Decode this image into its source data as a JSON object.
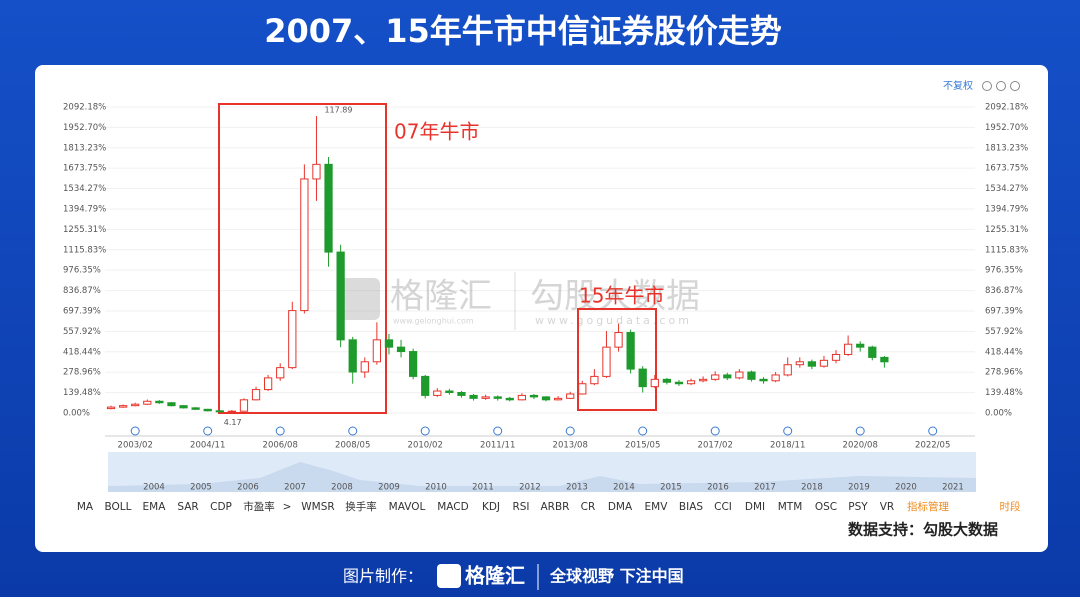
{
  "chart_data": {
    "type": "candlestick",
    "title": "2007、15年牛市中信证券股价走势",
    "categories": [
      null,
      null,
      "2003/02",
      null,
      null,
      null,
      null,
      null,
      "2004/11",
      null,
      null,
      null,
      null,
      null,
      "2006/08",
      null,
      null,
      null,
      null,
      null,
      "2008/05",
      null,
      null,
      null,
      null,
      null,
      "2010/02",
      null,
      null,
      null,
      null,
      null,
      "2011/11",
      null,
      null,
      null,
      null,
      null,
      "2013/08",
      null,
      null,
      null,
      null,
      null,
      "2015/05",
      null,
      null,
      null,
      null,
      null,
      "2017/02",
      null,
      null,
      null,
      null,
      null,
      "2018/11",
      null,
      null,
      null,
      null,
      null,
      "2020/08",
      null,
      null,
      null,
      null,
      null,
      "2022/05",
      null,
      null,
      null
    ],
    "open": [
      30,
      40,
      50,
      60,
      80,
      70,
      50,
      35,
      25,
      15,
      8,
      12,
      90,
      160,
      240,
      310,
      700,
      1600,
      1700,
      1100,
      500,
      280,
      350,
      500,
      450,
      420,
      250,
      120,
      150,
      140,
      120,
      100,
      110,
      100,
      90,
      120,
      110,
      90,
      100,
      130,
      200,
      250,
      450,
      550,
      300,
      180,
      230,
      210,
      200,
      220,
      230,
      260,
      240,
      280,
      230,
      220,
      260,
      330,
      350,
      320,
      360,
      400,
      470,
      450,
      380,
      null,
      null,
      null,
      null,
      null,
      null,
      null
    ],
    "high": [
      50,
      58,
      70,
      92,
      88,
      74,
      55,
      40,
      28,
      18,
      20,
      100,
      180,
      260,
      340,
      760,
      1700,
      2030,
      1750,
      1150,
      520,
      380,
      620,
      540,
      500,
      440,
      260,
      170,
      165,
      150,
      130,
      125,
      120,
      110,
      135,
      130,
      115,
      115,
      145,
      220,
      300,
      560,
      610,
      570,
      320,
      260,
      240,
      225,
      235,
      250,
      285,
      275,
      300,
      290,
      245,
      280,
      380,
      380,
      365,
      390,
      430,
      530,
      490,
      460,
      390,
      null,
      null,
      null,
      null,
      null,
      null,
      null
    ],
    "low": [
      25,
      35,
      45,
      55,
      62,
      44,
      30,
      20,
      10,
      2,
      5,
      10,
      85,
      150,
      220,
      300,
      680,
      1450,
      1000,
      450,
      200,
      240,
      330,
      400,
      380,
      230,
      100,
      110,
      125,
      105,
      85,
      90,
      85,
      80,
      85,
      95,
      80,
      85,
      95,
      125,
      190,
      240,
      420,
      270,
      140,
      170,
      195,
      185,
      190,
      210,
      220,
      225,
      230,
      215,
      200,
      210,
      250,
      310,
      300,
      310,
      340,
      390,
      420,
      360,
      310,
      null,
      null,
      null,
      null,
      null,
      null,
      null
    ],
    "close": [
      40,
      50,
      60,
      80,
      70,
      50,
      35,
      25,
      15,
      8,
      12,
      90,
      160,
      240,
      310,
      700,
      1600,
      1700,
      1100,
      500,
      280,
      350,
      500,
      450,
      420,
      250,
      120,
      150,
      140,
      120,
      100,
      110,
      100,
      90,
      120,
      110,
      90,
      100,
      130,
      200,
      250,
      450,
      550,
      300,
      180,
      230,
      210,
      200,
      220,
      230,
      260,
      240,
      280,
      230,
      220,
      260,
      330,
      350,
      320,
      360,
      400,
      470,
      450,
      380,
      350,
      null,
      null,
      null,
      null,
      null,
      null,
      null
    ],
    "up_color": "#e8332b",
    "down_color": "#1f9a2c",
    "ylim": [
      -100,
      2150
    ],
    "yticks": [
      {
        "value": 0,
        "label": "0.00%"
      },
      {
        "value": 139.48,
        "label": "139.48%"
      },
      {
        "value": 278.96,
        "label": "278.96%"
      },
      {
        "value": 418.44,
        "label": "418.44%"
      },
      {
        "value": 557.92,
        "label": "557.92%"
      },
      {
        "value": 697.39,
        "label": "697.39%"
      },
      {
        "value": 836.87,
        "label": "836.87%"
      },
      {
        "value": 976.35,
        "label": "976.35%"
      },
      {
        "value": 1115.83,
        "label": "1115.83%"
      },
      {
        "value": 1255.31,
        "label": "1255.31%"
      },
      {
        "value": 1394.79,
        "label": "1394.79%"
      },
      {
        "value": 1534.27,
        "label": "1534.27%"
      },
      {
        "value": 1673.75,
        "label": "1673.75%"
      },
      {
        "value": 1813.23,
        "label": "1813.23%"
      },
      {
        "value": 1952.7,
        "label": "1952.70%"
      },
      {
        "value": 2092.18,
        "label": "2092.18%"
      }
    ],
    "annotations": [
      "07年牛市",
      "15年牛市"
    ],
    "peak_label": "117.89",
    "low_label": "4.17",
    "navigator_years": [
      "2004",
      "2005",
      "2006",
      "2007",
      "2008",
      "2009",
      "2010",
      "2011",
      "2012",
      "2013",
      "2014",
      "2015",
      "2016",
      "2017",
      "2018",
      "2019",
      "2020",
      "2021"
    ]
  },
  "ui": {
    "adjust": "不复权",
    "indicators": [
      "MA",
      "BOLL",
      "EMA",
      "SAR",
      "CDP",
      "市盈率",
      ">",
      "WMSR",
      "换手率",
      "MAVOL",
      "MACD",
      "KDJ",
      "RSI",
      "ARBR",
      "CR",
      "DMA",
      "EMV",
      "BIAS",
      "CCI",
      "DMI",
      "MTM",
      "OSC",
      "PSY",
      "VR",
      "指标管理",
      "时段"
    ],
    "source": "数据支持：勾股大数据",
    "watermark_left": "格隆汇",
    "watermark_left_url": "www.gelonghui.com",
    "watermark_right": "勾股大数据",
    "watermark_right_url": "www.gogudata.com",
    "footer_label": "图片制作：",
    "footer_brand": "格隆汇",
    "footer_slogan": "全球视野 下注中国"
  }
}
